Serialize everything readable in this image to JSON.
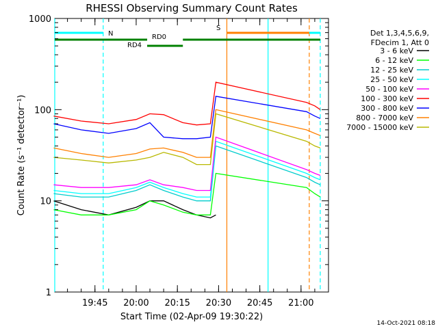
{
  "chart_data": {
    "type": "line",
    "title": "RHESSI Observing Summary Count Rates",
    "xlabel": "Start Time (02-Apr-09 19:30:22)",
    "ylabel": "Count Rate (s⁻¹ detector⁻¹)",
    "y_scale": "log",
    "ylim": [
      1,
      1000
    ],
    "xlim": [
      "19:30:22",
      "21:10:00"
    ],
    "x_ticks": [
      "19:45",
      "20:00",
      "20:15",
      "20:30",
      "20:45",
      "21:00"
    ],
    "y_ticks": [
      "1",
      "10",
      "100",
      "1000"
    ],
    "footer_date": "14-Oct-2021 08:18",
    "legend_header": [
      "Det 1,3,4,5,6,9,",
      "FDecim 1, Att 0"
    ],
    "series": [
      {
        "name": "3 - 6 keV",
        "color": "#000000",
        "x": [
          "19:30",
          "19:40",
          "19:50",
          "20:00",
          "20:05",
          "20:10",
          "20:17",
          "20:22",
          "20:27",
          "20:29"
        ],
        "values": [
          10,
          8,
          7,
          8.5,
          10,
          10,
          8,
          7,
          6.5,
          7
        ]
      },
      {
        "name": "6 - 12 keV",
        "color": "#00ff00",
        "x": [
          "19:30",
          "19:40",
          "19:50",
          "20:00",
          "20:05",
          "20:10",
          "20:17",
          "20:22",
          "20:27",
          "20:29",
          "21:02",
          "21:05",
          "21:07"
        ],
        "values": [
          8,
          7,
          7,
          8,
          10,
          9,
          7.5,
          7,
          7,
          20,
          14,
          12,
          11
        ]
      },
      {
        "name": "12 - 25 keV",
        "color": "#00cccc",
        "x": [
          "19:30",
          "19:40",
          "19:50",
          "20:00",
          "20:05",
          "20:10",
          "20:17",
          "20:22",
          "20:27",
          "20:29",
          "21:02",
          "21:05",
          "21:07"
        ],
        "values": [
          12,
          11,
          11,
          13,
          15,
          13,
          11,
          10,
          10,
          40,
          18,
          16,
          15
        ]
      },
      {
        "name": "25 - 50 keV",
        "color": "#00ffff",
        "x": [
          "19:30",
          "19:40",
          "19:50",
          "20:00",
          "20:05",
          "20:10",
          "20:17",
          "20:22",
          "20:27",
          "20:29",
          "21:02",
          "21:05",
          "21:07"
        ],
        "values": [
          13,
          12,
          12,
          14,
          16,
          14,
          12,
          11,
          11,
          45,
          20,
          18,
          17
        ]
      },
      {
        "name": "50 - 100 keV",
        "color": "#ff00ff",
        "x": [
          "19:30",
          "19:40",
          "19:50",
          "20:00",
          "20:05",
          "20:10",
          "20:17",
          "20:22",
          "20:27",
          "20:29",
          "21:02",
          "21:05",
          "21:07"
        ],
        "values": [
          15,
          14,
          14,
          15,
          17,
          15,
          14,
          13,
          13,
          50,
          22,
          20,
          19
        ]
      },
      {
        "name": "100 - 300 keV",
        "color": "#ff0000",
        "x": [
          "19:30",
          "19:40",
          "19:50",
          "20:00",
          "20:05",
          "20:10",
          "20:17",
          "20:22",
          "20:27",
          "20:29",
          "21:02",
          "21:05",
          "21:07"
        ],
        "values": [
          85,
          75,
          70,
          78,
          90,
          88,
          72,
          68,
          70,
          200,
          120,
          110,
          100
        ]
      },
      {
        "name": "300 - 800 keV",
        "color": "#0000ff",
        "x": [
          "19:30",
          "19:40",
          "19:50",
          "20:00",
          "20:05",
          "20:10",
          "20:17",
          "20:22",
          "20:27",
          "20:29",
          "21:02",
          "21:05",
          "21:07"
        ],
        "values": [
          70,
          60,
          55,
          62,
          72,
          50,
          48,
          48,
          50,
          140,
          95,
          85,
          80
        ]
      },
      {
        "name": "800 - 7000 keV",
        "color": "#ff8000",
        "x": [
          "19:30",
          "19:40",
          "19:50",
          "20:00",
          "20:05",
          "20:10",
          "20:17",
          "20:22",
          "20:27",
          "20:29",
          "21:02",
          "21:05",
          "21:07"
        ],
        "values": [
          38,
          33,
          30,
          33,
          37,
          38,
          34,
          30,
          30,
          100,
          60,
          55,
          52
        ]
      },
      {
        "name": "7000 - 15000 keV",
        "color": "#b8b800",
        "x": [
          "19:30",
          "19:40",
          "19:50",
          "20:00",
          "20:05",
          "20:10",
          "20:17",
          "20:22",
          "20:27",
          "20:29",
          "21:02",
          "21:05",
          "21:07"
        ],
        "values": [
          30,
          28,
          26,
          28,
          30,
          34,
          30,
          25,
          25,
          90,
          45,
          40,
          38
        ]
      }
    ],
    "annotations": {
      "bars": [
        {
          "label": "N",
          "color": "#00ffff",
          "level": "top"
        },
        {
          "label": "RD0",
          "color": "#008000",
          "level": "mid"
        },
        {
          "label": "RD4",
          "color": "#008000",
          "level": "low"
        },
        {
          "label": "S",
          "color": "#ff8000",
          "level": "top"
        }
      ],
      "vlines": [
        {
          "x": "19:30:22",
          "color": "#00ffff",
          "style": "solid"
        },
        {
          "x": "19:48",
          "color": "#00ffff",
          "style": "dashed"
        },
        {
          "x": "20:33",
          "color": "#ff8000",
          "style": "solid"
        },
        {
          "x": "20:48",
          "color": "#00ffff",
          "style": "solid"
        },
        {
          "x": "21:03",
          "color": "#ff8000",
          "style": "dashed"
        },
        {
          "x": "21:07",
          "color": "#00ffff",
          "style": "dashed"
        }
      ]
    }
  }
}
